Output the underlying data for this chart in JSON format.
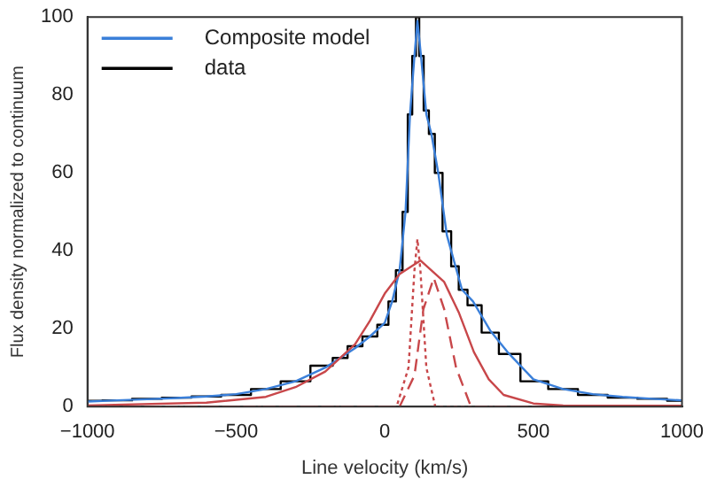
{
  "chart_data": {
    "type": "line",
    "xlabel": "Line velocity (km/s)",
    "ylabel": "Flux density normalized to continuum",
    "xlim": [
      -1000,
      1000
    ],
    "ylim": [
      0,
      100
    ],
    "xticks": [
      -1000,
      -500,
      0,
      500,
      1000
    ],
    "yticks": [
      0,
      20,
      40,
      60,
      80,
      100
    ],
    "grid": false,
    "legend": "top left",
    "marker": "none",
    "series": [
      {
        "color": "#c8474a",
        "line_style": "solid",
        "x": [
          -1000,
          -600,
          -400,
          -300,
          -200,
          -100,
          -50,
          0,
          50,
          120,
          200,
          250,
          300,
          350,
          400,
          500,
          600,
          1000
        ],
        "values": [
          0.3,
          1,
          2.5,
          5,
          9,
          16,
          22,
          29,
          34,
          37.5,
          32,
          24,
          14,
          7,
          3,
          0.8,
          0.3,
          0.2
        ]
      },
      {
        "color": "#c8474a",
        "line_style": "dotted",
        "x": [
          -1000,
          40,
          80,
          100,
          110,
          120,
          140,
          170,
          1000
        ],
        "values": [
          0,
          0,
          10,
          35,
          43,
          35,
          10,
          0,
          0
        ]
      },
      {
        "color": "#c8474a",
        "line_style": "dashed",
        "x": [
          -1000,
          50,
          100,
          130,
          165,
          200,
          240,
          290,
          1000
        ],
        "values": [
          0,
          0,
          8,
          25,
          33,
          25,
          10,
          0,
          0
        ]
      },
      {
        "name": "Composite model",
        "color": "#3a7fd9",
        "line_style": "solid",
        "x": [
          -1000,
          -900,
          -800,
          -700,
          -600,
          -500,
          -400,
          -300,
          -200,
          -150,
          -100,
          -50,
          0,
          25,
          50,
          70,
          85,
          100,
          110,
          122,
          140,
          157,
          180,
          209,
          238,
          260,
          297,
          355,
          413,
          500,
          600,
          700,
          800,
          900,
          1000
        ],
        "values": [
          1.3,
          1.6,
          1.9,
          2.2,
          2.6,
          3.2,
          4.5,
          6.5,
          10,
          12.5,
          15,
          18,
          21.5,
          27,
          35,
          50,
          75,
          90,
          99,
          90,
          75,
          70,
          60,
          44,
          36,
          30,
          27,
          19.5,
          14,
          7,
          4.5,
          3.2,
          2.5,
          2,
          1.6
        ]
      },
      {
        "type": "step",
        "name": "data",
        "color": "#000000",
        "line_style": "solid",
        "x": [
          -1000,
          -900,
          -800,
          -700,
          -600,
          -500,
          -400,
          -300,
          -200,
          -150,
          -100,
          -50,
          0,
          25,
          50,
          70,
          85,
          100,
          110,
          122,
          140,
          157,
          180,
          209,
          238,
          260,
          297,
          355,
          413,
          500,
          600,
          700,
          800,
          900,
          1000
        ],
        "values": [
          1.5,
          1.6,
          2,
          2.3,
          2.6,
          3,
          4.5,
          6.5,
          10.5,
          12.5,
          15.5,
          18,
          21,
          27,
          35,
          50,
          75,
          90,
          100,
          90,
          76,
          70,
          60,
          45,
          36,
          30,
          26,
          19,
          13.5,
          6.5,
          4.5,
          3,
          2.3,
          2,
          1.5
        ]
      }
    ]
  }
}
